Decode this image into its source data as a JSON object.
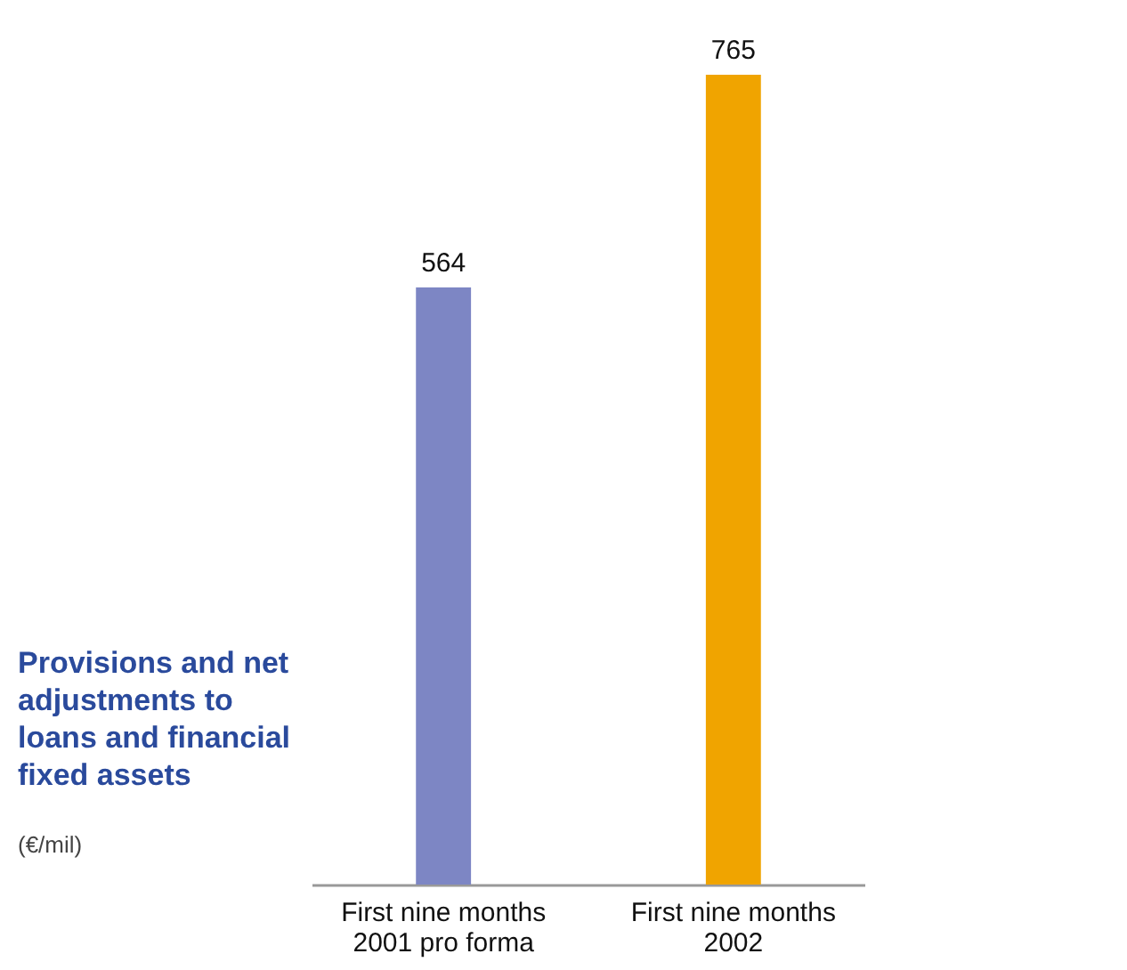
{
  "chart_data": {
    "type": "bar",
    "title": "Provisions and net adjustments to loans and financial fixed assets",
    "subtitle": "(€/mil)",
    "categories": [
      "First nine months 2001 pro forma",
      "First nine months 2002"
    ],
    "values": [
      564,
      765
    ],
    "colors": [
      "#7d86c4",
      "#f0a400"
    ],
    "data_labels": true
  }
}
